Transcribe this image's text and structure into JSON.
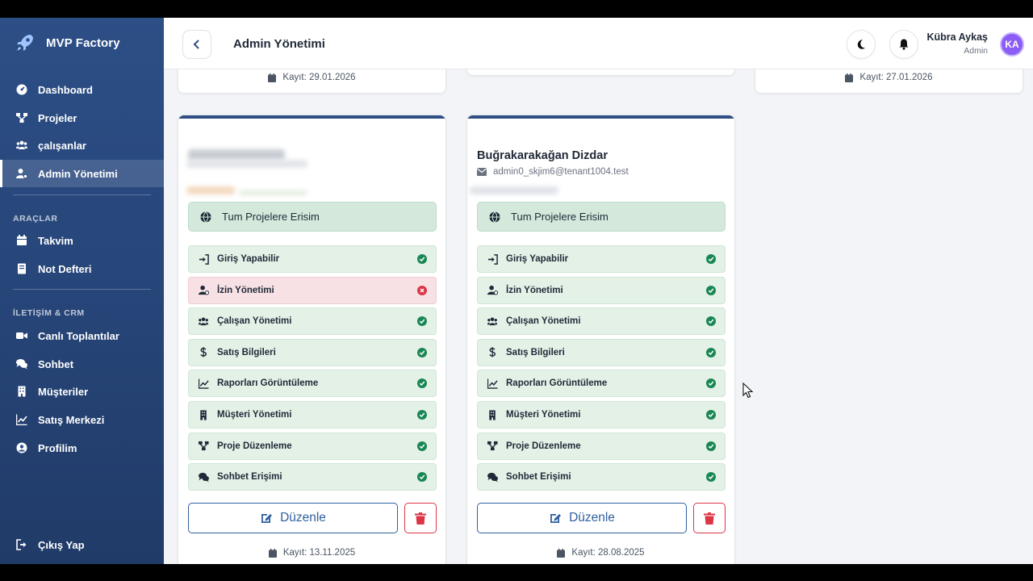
{
  "app": {
    "brand": "MVP Factory"
  },
  "sidebar": {
    "items": [
      {
        "label": "Dashboard",
        "icon": "dashboard-icon"
      },
      {
        "label": "Projeler",
        "icon": "project-diagram-icon"
      },
      {
        "label": "çalışanlar",
        "icon": "users-icon"
      },
      {
        "label": "Admin Yönetimi",
        "icon": "user-cog-icon",
        "active": true
      }
    ],
    "section_tools": "ARAÇLAR",
    "tools": [
      {
        "label": "Takvim",
        "icon": "calendar-icon"
      },
      {
        "label": "Not Defteri",
        "icon": "notebook-icon"
      }
    ],
    "section_crm": "İLETİŞİM & CRM",
    "crm": [
      {
        "label": "Canlı Toplantılar",
        "icon": "video-icon"
      },
      {
        "label": "Sohbet",
        "icon": "comments-icon"
      },
      {
        "label": "Müşteriler",
        "icon": "building-icon"
      },
      {
        "label": "Satış Merkezi",
        "icon": "chart-line-icon"
      },
      {
        "label": "Profilim",
        "icon": "user-circle-icon"
      }
    ],
    "logout": "Çıkış Yap"
  },
  "header": {
    "title": "Admin Yönetimi",
    "user_name": "Kübra Aykaş",
    "user_role": "Admin",
    "avatar_initials": "KA"
  },
  "top_cards": [
    {
      "registered": "Kayıt: 29.01.2026"
    },
    {
      "registered": ""
    },
    {
      "registered": "Kayıt: 27.01.2026"
    }
  ],
  "cards": [
    {
      "name": "",
      "email": "",
      "access": "Tum Projelere Erisim",
      "registered": "Kayıt: 13.11.2025",
      "edit_label": "Düzenle",
      "permissions": [
        {
          "label": "Giriş Yapabilir",
          "granted": true
        },
        {
          "label": "İzin Yönetimi",
          "granted": false
        },
        {
          "label": "Çalışan Yönetimi",
          "granted": true
        },
        {
          "label": "Satış Bilgileri",
          "granted": true
        },
        {
          "label": "Raporları Görüntüleme",
          "granted": true
        },
        {
          "label": "Müşteri Yönetimi",
          "granted": true
        },
        {
          "label": "Proje Düzenleme",
          "granted": true
        },
        {
          "label": "Sohbet Erişimi",
          "granted": true
        }
      ]
    },
    {
      "name": "Buğrakarakağan Dizdar",
      "email": "admin0_skjim6@tenant1004.test",
      "access": "Tum Projelere Erisim",
      "registered": "Kayıt: 28.08.2025",
      "edit_label": "Düzenle",
      "permissions": [
        {
          "label": "Giriş Yapabilir",
          "granted": true
        },
        {
          "label": "İzin Yönetimi",
          "granted": true
        },
        {
          "label": "Çalışan Yönetimi",
          "granted": true
        },
        {
          "label": "Satış Bilgileri",
          "granted": true
        },
        {
          "label": "Raporları Görüntüleme",
          "granted": true
        },
        {
          "label": "Müşteri Yönetimi",
          "granted": true
        },
        {
          "label": "Proje Düzenleme",
          "granted": true
        },
        {
          "label": "Sohbet Erişimi",
          "granted": true
        }
      ]
    }
  ]
}
